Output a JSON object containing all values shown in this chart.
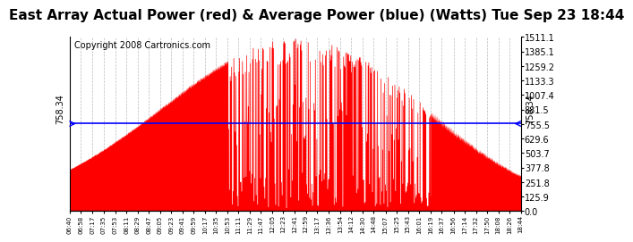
{
  "title": "East Array Actual Power (red) & Average Power (blue) (Watts) Tue Sep 23 18:44",
  "copyright": "Copyright 2008 Cartronics.com",
  "average_power": 758.34,
  "y_max": 1511.1,
  "y_min": 0.0,
  "y_ticks": [
    0.0,
    125.9,
    251.8,
    377.8,
    503.7,
    629.6,
    755.5,
    881.5,
    1007.4,
    1133.3,
    1259.2,
    1385.1,
    1511.1
  ],
  "time_tick_labels": [
    "06:40",
    "06:58",
    "07:17",
    "07:35",
    "07:53",
    "08:11",
    "08:29",
    "08:47",
    "09:05",
    "09:23",
    "09:41",
    "09:59",
    "10:17",
    "10:35",
    "10:53",
    "11:11",
    "11:29",
    "11:47",
    "12:05",
    "12:23",
    "12:41",
    "12:59",
    "13:17",
    "13:36",
    "13:54",
    "14:12",
    "14:30",
    "14:48",
    "15:07",
    "15:25",
    "15:43",
    "16:01",
    "16:19",
    "16:37",
    "16:56",
    "17:14",
    "17:32",
    "17:50",
    "18:08",
    "18:26",
    "18:44"
  ],
  "red_color": "#FF0000",
  "blue_color": "#0000FF",
  "bg_color": "#FFFFFF",
  "grid_color": "#AAAAAA",
  "title_fontsize": 11,
  "copyright_fontsize": 7
}
